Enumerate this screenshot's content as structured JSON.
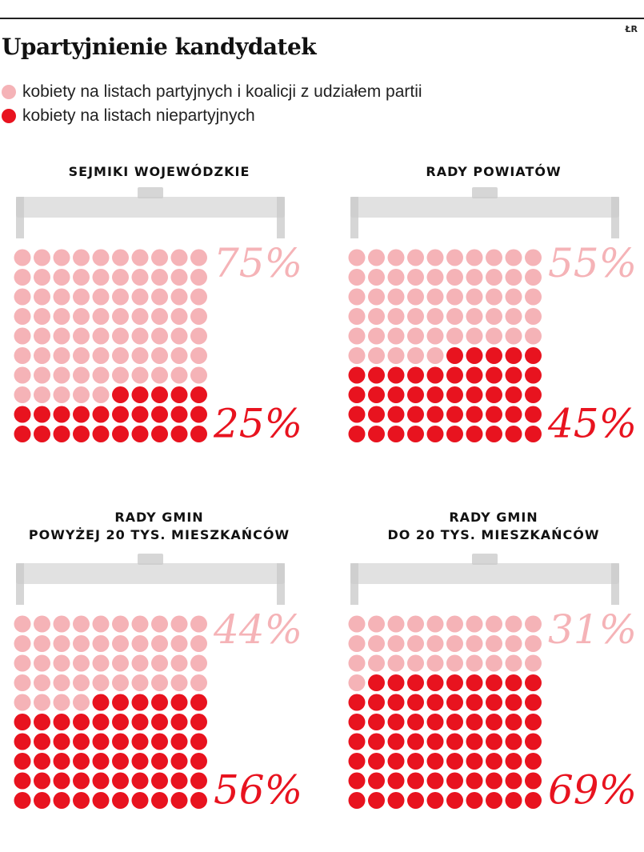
{
  "credit": "ŁR",
  "title": "Upartyjnienie kandydatek",
  "legend": [
    {
      "label": "kobiety na listach partyjnych i koalicji z udziałem partii",
      "color": "#f5b3b7"
    },
    {
      "label": "kobiety na listach niepartyjnych",
      "color": "#e8131f"
    }
  ],
  "colors": {
    "party": "#f5b3b7",
    "nonparty": "#e8131f",
    "bracket": "#c8c8c8"
  },
  "chart_data": [
    {
      "type": "waffle",
      "title_lines": [
        "SEJMIKI WOJEWÓDZKIE"
      ],
      "categories": [
        "kobiety na listach partyjnych i koalicji z udziałem partii",
        "kobiety na listach niepartyjnych"
      ],
      "values": [
        75,
        25
      ],
      "labels": [
        "75%",
        "25%"
      ],
      "grid": {
        "rows": 10,
        "cols": 10
      }
    },
    {
      "type": "waffle",
      "title_lines": [
        "RADY POWIATÓW"
      ],
      "categories": [
        "kobiety na listach partyjnych i koalicji z udziałem partii",
        "kobiety na listach niepartyjnych"
      ],
      "values": [
        55,
        45
      ],
      "labels": [
        "55%",
        "45%"
      ],
      "grid": {
        "rows": 10,
        "cols": 10
      }
    },
    {
      "type": "waffle",
      "title_lines": [
        "RADY GMIN",
        "POWYŻEJ 20 TYS. MIESZKAŃCÓW"
      ],
      "categories": [
        "kobiety na listach partyjnych i koalicji z udziałem partii",
        "kobiety na listach niepartyjnych"
      ],
      "values": [
        44,
        56
      ],
      "labels": [
        "44%",
        "56%"
      ],
      "grid": {
        "rows": 10,
        "cols": 10
      }
    },
    {
      "type": "waffle",
      "title_lines": [
        "RADY GMIN",
        "DO 20 TYS. MIESZKAŃCÓW"
      ],
      "categories": [
        "kobiety na listach partyjnych i koalicji z udziałem partii",
        "kobiety na listach niepartyjnych"
      ],
      "values": [
        31,
        69
      ],
      "labels": [
        "31%",
        "69%"
      ],
      "grid": {
        "rows": 10,
        "cols": 10
      }
    }
  ]
}
